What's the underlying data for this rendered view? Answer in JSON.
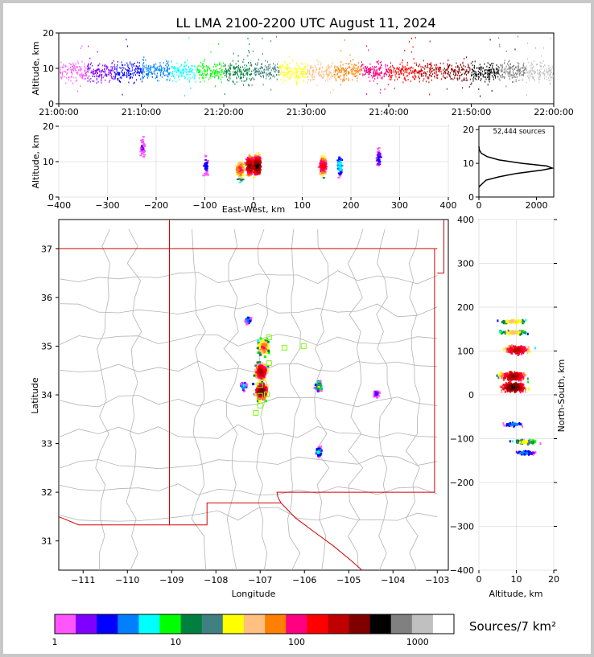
{
  "title": "LL LMA 2100-2200 UTC August 11, 2024",
  "colorbar_label": "Sources/7 km²",
  "colors": {
    "frame_bg": "#c8c8c8",
    "state_border": "#d40000",
    "county_border": "#b4b4b4",
    "station_marker": "#7cfc00"
  },
  "chart_data": [
    {
      "id": "time_height",
      "type": "scatter",
      "title": "",
      "xlabel": "",
      "ylabel": "Altitude, km",
      "x_ticks": [
        "21:00:00",
        "21:10:00",
        "21:20:00",
        "21:30:00",
        "21:40:00",
        "21:50:00",
        "22:00:00"
      ],
      "xlim": [
        "21:00:00",
        "22:00:00"
      ],
      "y_ticks": [
        0,
        10,
        20
      ],
      "ylim": [
        0,
        20
      ],
      "description_values": {
        "typical_altitude_km": 9,
        "altitude_spread_km": [
          2,
          19
        ]
      }
    },
    {
      "id": "ew_height",
      "type": "heatmap",
      "xlabel": "East-West, km",
      "ylabel": "Altitude, km",
      "x_ticks": [
        -400,
        -300,
        -200,
        -100,
        0,
        100,
        200,
        300,
        400
      ],
      "xlim": [
        -400,
        400
      ],
      "y_ticks": [
        0,
        10,
        20
      ],
      "ylim": [
        0,
        20
      ],
      "cells": [
        {
          "x": -30,
          "z": 8,
          "count": 120
        },
        {
          "x": -10,
          "z": 9,
          "count": 400
        },
        {
          "x": 5,
          "z": 9,
          "count": 600
        },
        {
          "x": 140,
          "z": 9,
          "count": 200
        },
        {
          "x": 175,
          "z": 9,
          "count": 8
        },
        {
          "x": 255,
          "z": 11,
          "count": 3
        },
        {
          "x": -100,
          "z": 9,
          "count": 3
        },
        {
          "x": -230,
          "z": 14,
          "count": 2
        }
      ]
    },
    {
      "id": "altitude_histogram",
      "type": "line",
      "annotation": "52,444 sources",
      "x_ticks": [
        0,
        2000
      ],
      "xlim": [
        0,
        2600
      ],
      "y_ticks": [
        0,
        10,
        20
      ],
      "ylim": [
        0,
        21
      ],
      "profile": [
        {
          "alt": 3,
          "count": 0
        },
        {
          "alt": 5,
          "count": 250
        },
        {
          "alt": 6,
          "count": 700
        },
        {
          "alt": 7,
          "count": 1300
        },
        {
          "alt": 8,
          "count": 2200
        },
        {
          "alt": 8.6,
          "count": 2550
        },
        {
          "alt": 9.2,
          "count": 2350
        },
        {
          "alt": 10,
          "count": 1500
        },
        {
          "alt": 11,
          "count": 700
        },
        {
          "alt": 12,
          "count": 280
        },
        {
          "alt": 13,
          "count": 80
        },
        {
          "alt": 14,
          "count": 15
        },
        {
          "alt": 15,
          "count": 0
        }
      ]
    },
    {
      "id": "plan_view",
      "type": "heatmap",
      "xlabel": "Longitude",
      "ylabel": "Latitude",
      "x_ticks": [
        -111,
        -110,
        -109,
        -108,
        -107,
        -106,
        -105,
        -104,
        -103
      ],
      "xlim": [
        -111.55,
        -102.75
      ],
      "y_ticks": [
        31,
        32,
        33,
        34,
        35,
        36,
        37
      ],
      "ylim": [
        30.4,
        37.6
      ],
      "clusters": [
        {
          "lon": -107.0,
          "lat": 34.1,
          "count": 600
        },
        {
          "lon": -107.0,
          "lat": 34.5,
          "count": 400
        },
        {
          "lon": -106.95,
          "lat": 35.0,
          "count": 120
        },
        {
          "lon": -107.3,
          "lat": 35.55,
          "count": 6
        },
        {
          "lon": -107.4,
          "lat": 34.2,
          "count": 8
        },
        {
          "lon": -105.7,
          "lat": 34.2,
          "count": 30
        },
        {
          "lon": -105.7,
          "lat": 32.85,
          "count": 10
        },
        {
          "lon": -104.4,
          "lat": 34.05,
          "count": 3
        }
      ],
      "stations": [
        {
          "lon": -106.8,
          "lat": 35.18
        },
        {
          "lon": -106.45,
          "lat": 34.97
        },
        {
          "lon": -106.02,
          "lat": 35.0
        },
        {
          "lon": -106.8,
          "lat": 34.65
        },
        {
          "lon": -107.0,
          "lat": 34.2
        },
        {
          "lon": -106.85,
          "lat": 34.01
        },
        {
          "lon": -107.0,
          "lat": 33.98
        },
        {
          "lon": -107.0,
          "lat": 33.78
        },
        {
          "lon": -107.1,
          "lat": 33.63
        }
      ]
    },
    {
      "id": "ns_height",
      "type": "heatmap",
      "xlabel": "Altitude, km",
      "ylabel": "North-South, km",
      "x_ticks": [
        0,
        10,
        20
      ],
      "xlim": [
        0,
        20
      ],
      "y_ticks": [
        -400,
        -300,
        -200,
        -100,
        0,
        100,
        200,
        300,
        400
      ],
      "ylim": [
        -400,
        400
      ],
      "cells": [
        {
          "y": 170,
          "z": 9,
          "count": 60
        },
        {
          "y": 145,
          "z": 9,
          "count": 60
        },
        {
          "y": 105,
          "z": 10,
          "count": 300
        },
        {
          "y": 45,
          "z": 9,
          "count": 400
        },
        {
          "y": 20,
          "z": 9,
          "count": 600
        },
        {
          "y": -65,
          "z": 9,
          "count": 5
        },
        {
          "y": -105,
          "z": 12,
          "count": 40
        },
        {
          "y": -130,
          "z": 12,
          "count": 5
        }
      ]
    },
    {
      "id": "colorbar",
      "type": "colorbar",
      "scale": "log",
      "tick_labels": [
        "1",
        "10",
        "100",
        "1000"
      ],
      "tick_values": [
        1,
        10,
        100,
        1000
      ],
      "range": [
        1,
        2000
      ],
      "colors": [
        "#ff55ff",
        "#8000ff",
        "#0000ff",
        "#0080ff",
        "#00ffff",
        "#00ff00",
        "#008040",
        "#408080",
        "#ffff00",
        "#ffc080",
        "#ff8000",
        "#ff0080",
        "#ff0000",
        "#c00000",
        "#800000",
        "#000000",
        "#808080",
        "#c0c0c0",
        "#ffffff"
      ]
    }
  ]
}
